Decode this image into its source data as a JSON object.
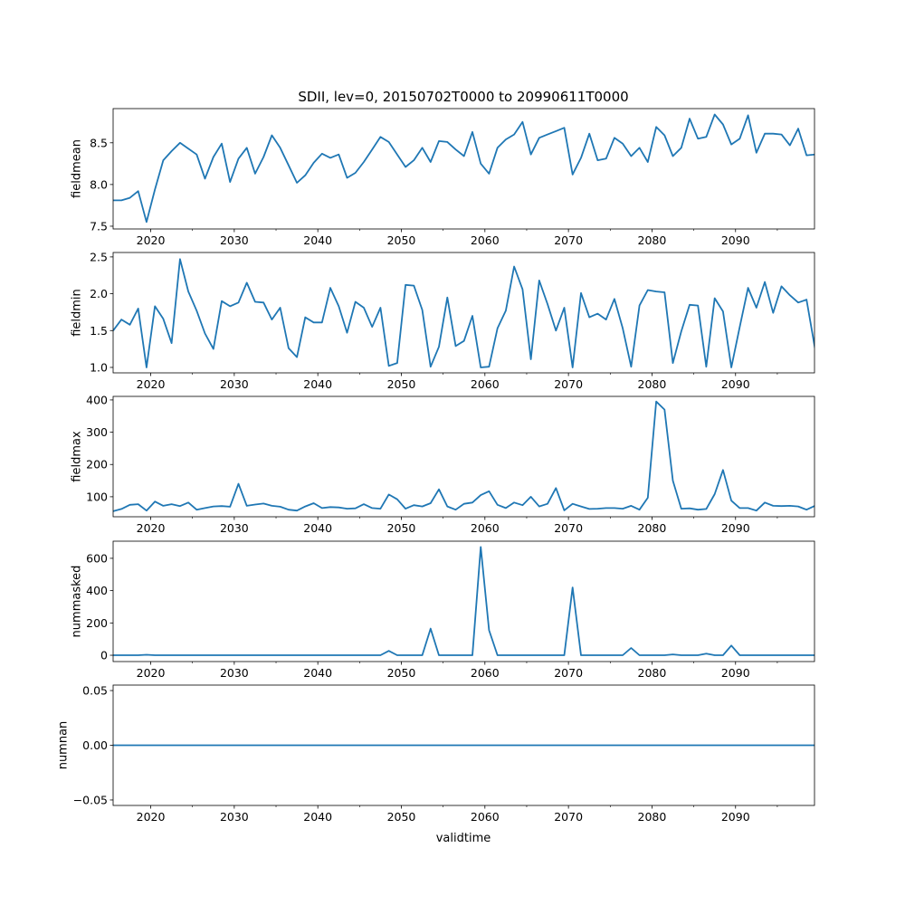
{
  "chart_data": {
    "type": "line",
    "title": "SDII, lev=0, 20150702T0000 to 20990611T0000",
    "xlabel": "validtime",
    "x_start": 2015.5,
    "x_step": 1,
    "xlim": [
      2015.5,
      2099.45
    ],
    "xticks": [
      2020,
      2030,
      2040,
      2050,
      2060,
      2070,
      2080,
      2090
    ],
    "xtick_labels": [
      "2020",
      "2030",
      "2040",
      "2050",
      "2060",
      "2070",
      "2080",
      "2090"
    ],
    "color": "#1f77b4",
    "panels": [
      {
        "ylabel": "fieldmean",
        "ylim": [
          7.467,
          8.91
        ],
        "yticks": [
          7.5,
          8.0,
          8.5
        ],
        "ytick_labels": [
          "7.5",
          "8.0",
          "8.5"
        ],
        "values": [
          7.81,
          7.81,
          7.84,
          7.92,
          7.55,
          7.94,
          8.29,
          8.4,
          8.5,
          8.43,
          8.36,
          8.07,
          8.33,
          8.49,
          8.03,
          8.31,
          8.44,
          8.13,
          8.33,
          8.59,
          8.44,
          8.23,
          8.02,
          8.11,
          8.26,
          8.37,
          8.32,
          8.36,
          8.08,
          8.14,
          8.27,
          8.42,
          8.57,
          8.51,
          8.36,
          8.21,
          8.29,
          8.44,
          8.27,
          8.52,
          8.51,
          8.42,
          8.34,
          8.63,
          8.25,
          8.13,
          8.44,
          8.54,
          8.6,
          8.75,
          8.36,
          8.56,
          8.6,
          8.64,
          8.68,
          8.12,
          8.32,
          8.61,
          8.29,
          8.31,
          8.56,
          8.49,
          8.34,
          8.44,
          8.27,
          8.69,
          8.59,
          8.34,
          8.44,
          8.79,
          8.55,
          8.57,
          8.84,
          8.72,
          8.48,
          8.55,
          8.83,
          8.38,
          8.61,
          8.61,
          8.6,
          8.47,
          8.67,
          8.35,
          8.36
        ]
      },
      {
        "ylabel": "fieldmin",
        "ylim": [
          0.926,
          2.56
        ],
        "yticks": [
          1.0,
          1.5,
          2.0,
          2.5
        ],
        "ytick_labels": [
          "1.0",
          "1.5",
          "2.0",
          "2.5"
        ],
        "values": [
          1.5,
          1.65,
          1.58,
          1.8,
          1.0,
          1.83,
          1.66,
          1.33,
          2.47,
          2.03,
          1.77,
          1.46,
          1.25,
          1.9,
          1.83,
          1.88,
          2.15,
          1.89,
          1.88,
          1.65,
          1.81,
          1.26,
          1.14,
          1.68,
          1.61,
          1.61,
          2.08,
          1.83,
          1.47,
          1.89,
          1.81,
          1.55,
          1.81,
          1.02,
          1.06,
          2.12,
          2.11,
          1.78,
          1.01,
          1.28,
          1.95,
          1.29,
          1.36,
          1.7,
          1.0,
          1.01,
          1.53,
          1.77,
          2.37,
          2.06,
          1.11,
          2.18,
          1.86,
          1.5,
          1.81,
          1.0,
          2.01,
          1.68,
          1.73,
          1.65,
          1.93,
          1.53,
          1.01,
          1.84,
          2.05,
          2.03,
          2.02,
          1.06,
          1.49,
          1.85,
          1.84,
          1.01,
          1.94,
          1.76,
          1.0,
          1.55,
          2.08,
          1.81,
          2.16,
          1.74,
          2.1,
          1.98,
          1.88,
          1.92,
          1.26
        ]
      },
      {
        "ylabel": "fieldmax",
        "ylim": [
          38,
          411
        ],
        "yticks": [
          100,
          200,
          300,
          400
        ],
        "ytick_labels": [
          "100",
          "200",
          "300",
          "400"
        ],
        "values": [
          55,
          62,
          75,
          77,
          57,
          85,
          72,
          77,
          71,
          82,
          60,
          65,
          70,
          71,
          69,
          140,
          72,
          76,
          79,
          72,
          69,
          60,
          57,
          70,
          80,
          65,
          68,
          67,
          63,
          64,
          77,
          65,
          63,
          107,
          92,
          63,
          74,
          70,
          80,
          123,
          70,
          60,
          78,
          82,
          105,
          117,
          75,
          65,
          82,
          74,
          100,
          70,
          78,
          127,
          58,
          78,
          70,
          62,
          63,
          65,
          65,
          63,
          72,
          60,
          97,
          395,
          370,
          150,
          63,
          64,
          60,
          62,
          108,
          183,
          88,
          65,
          65,
          57,
          82,
          72,
          71,
          72,
          70,
          60,
          72
        ]
      },
      {
        "ylabel": "nummasked",
        "ylim": [
          -39,
          706
        ],
        "yticks": [
          0,
          200,
          400,
          600
        ],
        "ytick_labels": [
          "0",
          "200",
          "400",
          "600"
        ],
        "values": [
          0,
          0,
          0,
          0,
          3,
          0,
          0,
          0,
          0,
          0,
          0,
          0,
          0,
          0,
          0,
          0,
          0,
          0,
          0,
          0,
          0,
          0,
          0,
          0,
          0,
          0,
          0,
          0,
          0,
          0,
          0,
          0,
          0,
          27,
          0,
          0,
          0,
          0,
          165,
          0,
          0,
          0,
          0,
          0,
          670,
          155,
          0,
          0,
          0,
          0,
          0,
          0,
          0,
          0,
          0,
          420,
          0,
          0,
          0,
          0,
          0,
          0,
          45,
          0,
          0,
          0,
          0,
          5,
          0,
          0,
          0,
          10,
          0,
          0,
          60,
          0,
          0,
          0,
          0,
          0,
          0,
          0,
          0,
          0,
          0
        ]
      },
      {
        "ylabel": "numnan",
        "ylim": [
          -0.055,
          0.055
        ],
        "yticks": [
          -0.05,
          0.0,
          0.05
        ],
        "ytick_labels": [
          "−0.05",
          "0.00",
          "0.05"
        ],
        "values": [
          0,
          0,
          0,
          0,
          0,
          0,
          0,
          0,
          0,
          0,
          0,
          0,
          0,
          0,
          0,
          0,
          0,
          0,
          0,
          0,
          0,
          0,
          0,
          0,
          0,
          0,
          0,
          0,
          0,
          0,
          0,
          0,
          0,
          0,
          0,
          0,
          0,
          0,
          0,
          0,
          0,
          0,
          0,
          0,
          0,
          0,
          0,
          0,
          0,
          0,
          0,
          0,
          0,
          0,
          0,
          0,
          0,
          0,
          0,
          0,
          0,
          0,
          0,
          0,
          0,
          0,
          0,
          0,
          0,
          0,
          0,
          0,
          0,
          0,
          0,
          0,
          0,
          0,
          0,
          0,
          0,
          0,
          0,
          0,
          0
        ]
      }
    ]
  }
}
